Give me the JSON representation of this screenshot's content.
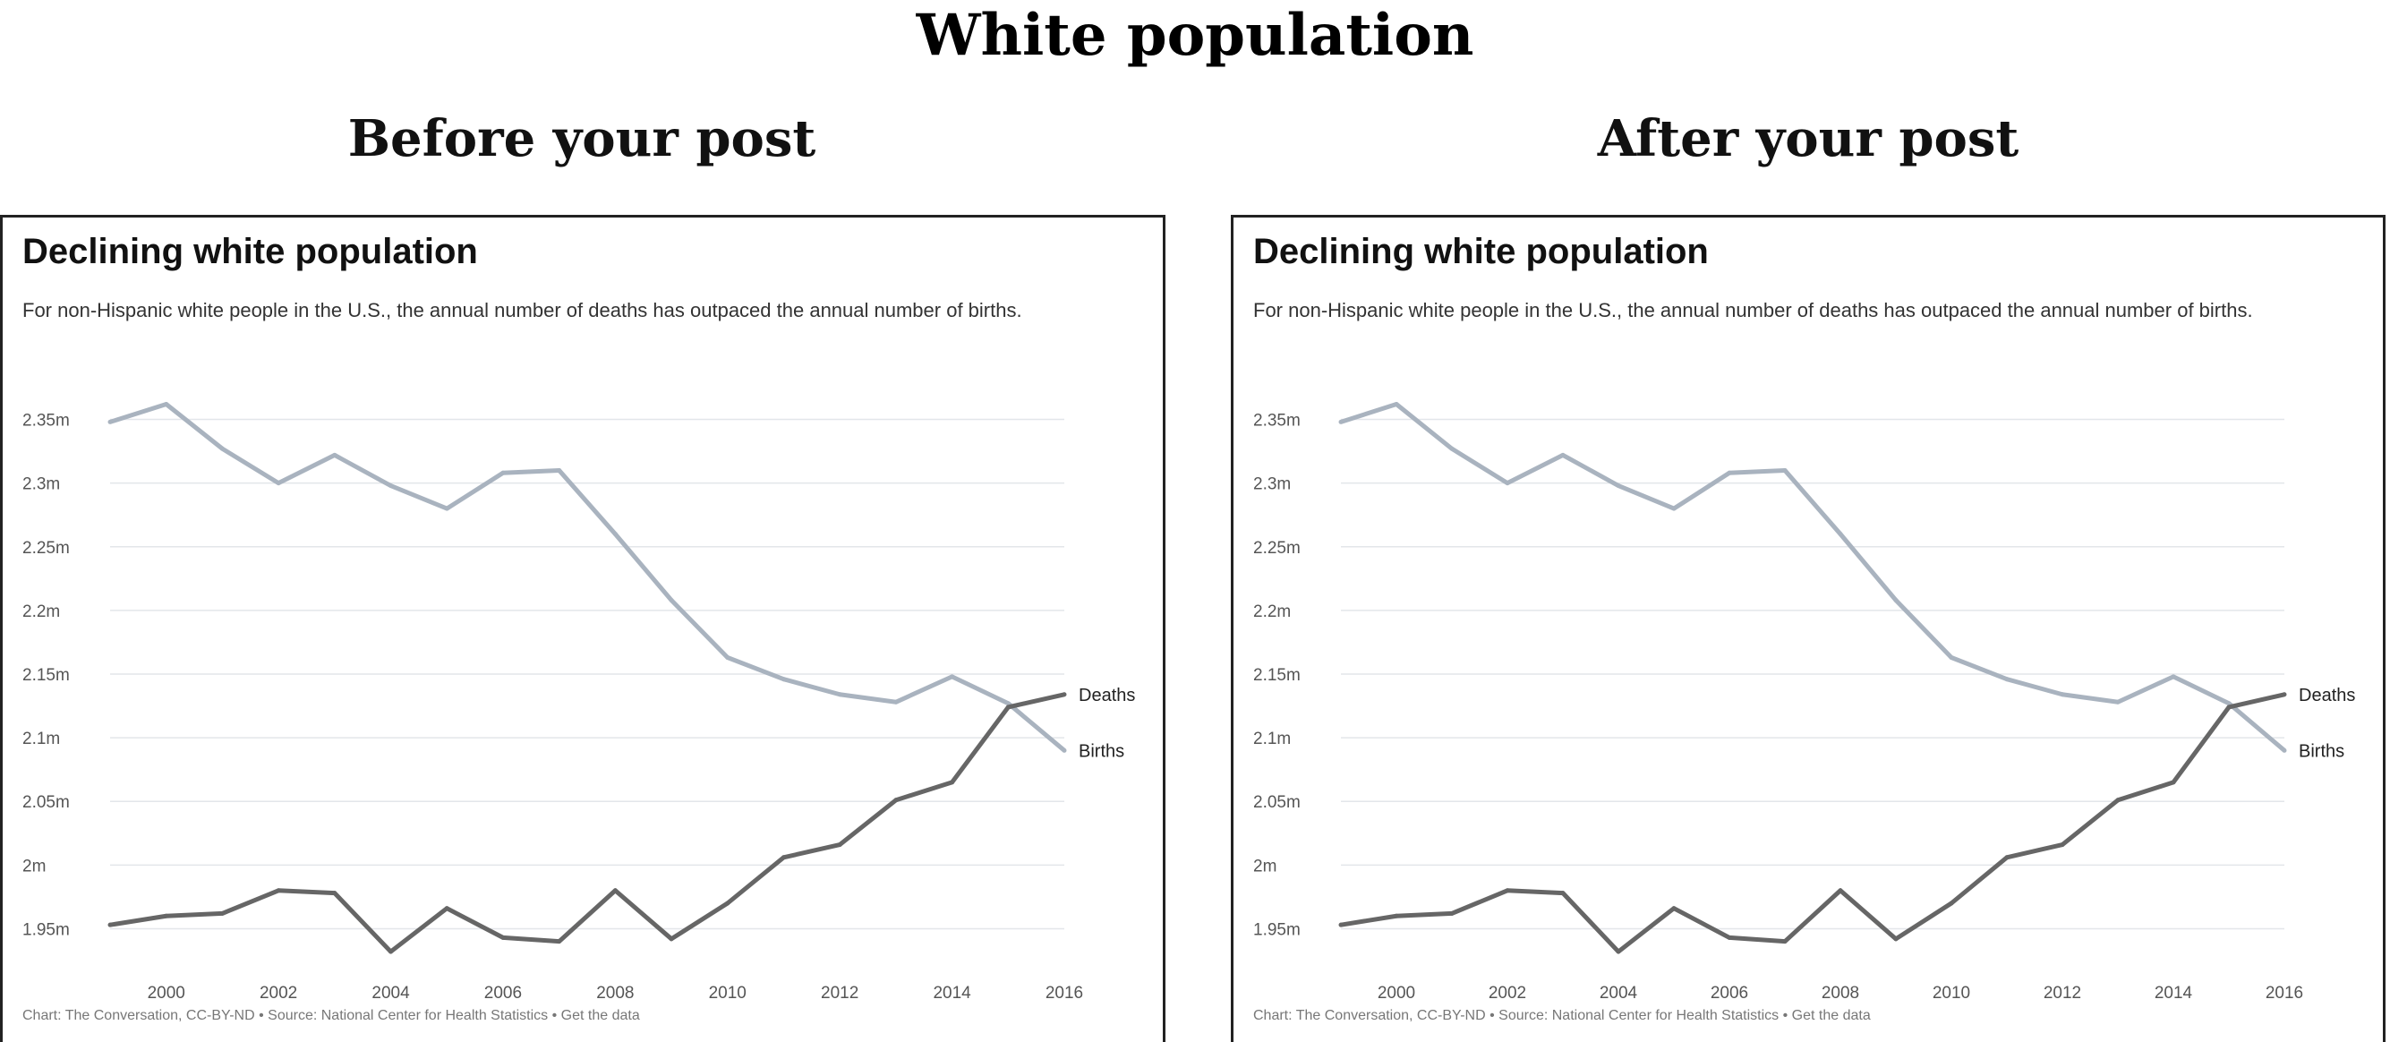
{
  "title": "White population",
  "panels": [
    {
      "heading": "Before your post",
      "card_title": "Declining white population",
      "subtitle": "For non-Hispanic white people in the U.S., the annual number of deaths has outpaced the annual number of births.",
      "source": "Chart: The Conversation, CC-BY-ND • Source: National Center for Health Statistics • Get the data"
    },
    {
      "heading": "After your post",
      "card_title": "Declining white population",
      "subtitle": "For non-Hispanic white people in the U.S., the annual number of deaths has outpaced the annual number of births.",
      "source": "Chart: The Conversation, CC-BY-ND • Source: National Center for Health Statistics • Get the data"
    }
  ],
  "chart_data": [
    {
      "type": "line",
      "title": "Declining white population",
      "x": [
        1999,
        2000,
        2001,
        2002,
        2003,
        2004,
        2005,
        2006,
        2007,
        2008,
        2009,
        2010,
        2011,
        2012,
        2013,
        2014,
        2015,
        2016
      ],
      "x_ticks": [
        "2000",
        "2002",
        "2004",
        "2006",
        "2008",
        "2010",
        "2012",
        "2014",
        "2016"
      ],
      "y_ticks": [
        "1.95m",
        "2m",
        "2.05m",
        "2.1m",
        "2.15m",
        "2.2m",
        "2.25m",
        "2.3m",
        "2.35m"
      ],
      "y_tick_values": [
        1950000,
        2000000,
        2050000,
        2100000,
        2150000,
        2200000,
        2250000,
        2300000,
        2350000
      ],
      "ylim": [
        1925000,
        2375000
      ],
      "grid": true,
      "series": [
        {
          "name": "Births",
          "color": "#a9b3bf",
          "values": [
            2348000,
            2362000,
            2327000,
            2300000,
            2322000,
            2298000,
            2280000,
            2308000,
            2310000,
            2260000,
            2208000,
            2163000,
            2146000,
            2134000,
            2128000,
            2148000,
            2127000,
            2090000
          ]
        },
        {
          "name": "Deaths",
          "color": "#666666",
          "values": [
            1953000,
            1960000,
            1962000,
            1980000,
            1978000,
            1932000,
            1966000,
            1943000,
            1940000,
            1980000,
            1942000,
            1970000,
            2006000,
            2016000,
            2051000,
            2065000,
            2124000,
            2134000
          ]
        }
      ]
    },
    {
      "type": "line",
      "title": "Declining white population",
      "x": [
        1999,
        2000,
        2001,
        2002,
        2003,
        2004,
        2005,
        2006,
        2007,
        2008,
        2009,
        2010,
        2011,
        2012,
        2013,
        2014,
        2015,
        2016
      ],
      "x_ticks": [
        "2000",
        "2002",
        "2004",
        "2006",
        "2008",
        "2010",
        "2012",
        "2014",
        "2016"
      ],
      "y_ticks": [
        "1.95m",
        "2m",
        "2.05m",
        "2.1m",
        "2.15m",
        "2.2m",
        "2.25m",
        "2.3m",
        "2.35m"
      ],
      "y_tick_values": [
        1950000,
        2000000,
        2050000,
        2100000,
        2150000,
        2200000,
        2250000,
        2300000,
        2350000
      ],
      "ylim": [
        1925000,
        2375000
      ],
      "grid": true,
      "series": [
        {
          "name": "Births",
          "color": "#a9b3bf",
          "values": [
            2348000,
            2362000,
            2327000,
            2300000,
            2322000,
            2298000,
            2280000,
            2308000,
            2310000,
            2260000,
            2208000,
            2163000,
            2146000,
            2134000,
            2128000,
            2148000,
            2127000,
            2090000
          ]
        },
        {
          "name": "Deaths",
          "color": "#666666",
          "values": [
            1953000,
            1960000,
            1962000,
            1980000,
            1978000,
            1932000,
            1966000,
            1943000,
            1940000,
            1980000,
            1942000,
            1970000,
            2006000,
            2016000,
            2051000,
            2065000,
            2124000,
            2134000
          ]
        }
      ]
    }
  ]
}
